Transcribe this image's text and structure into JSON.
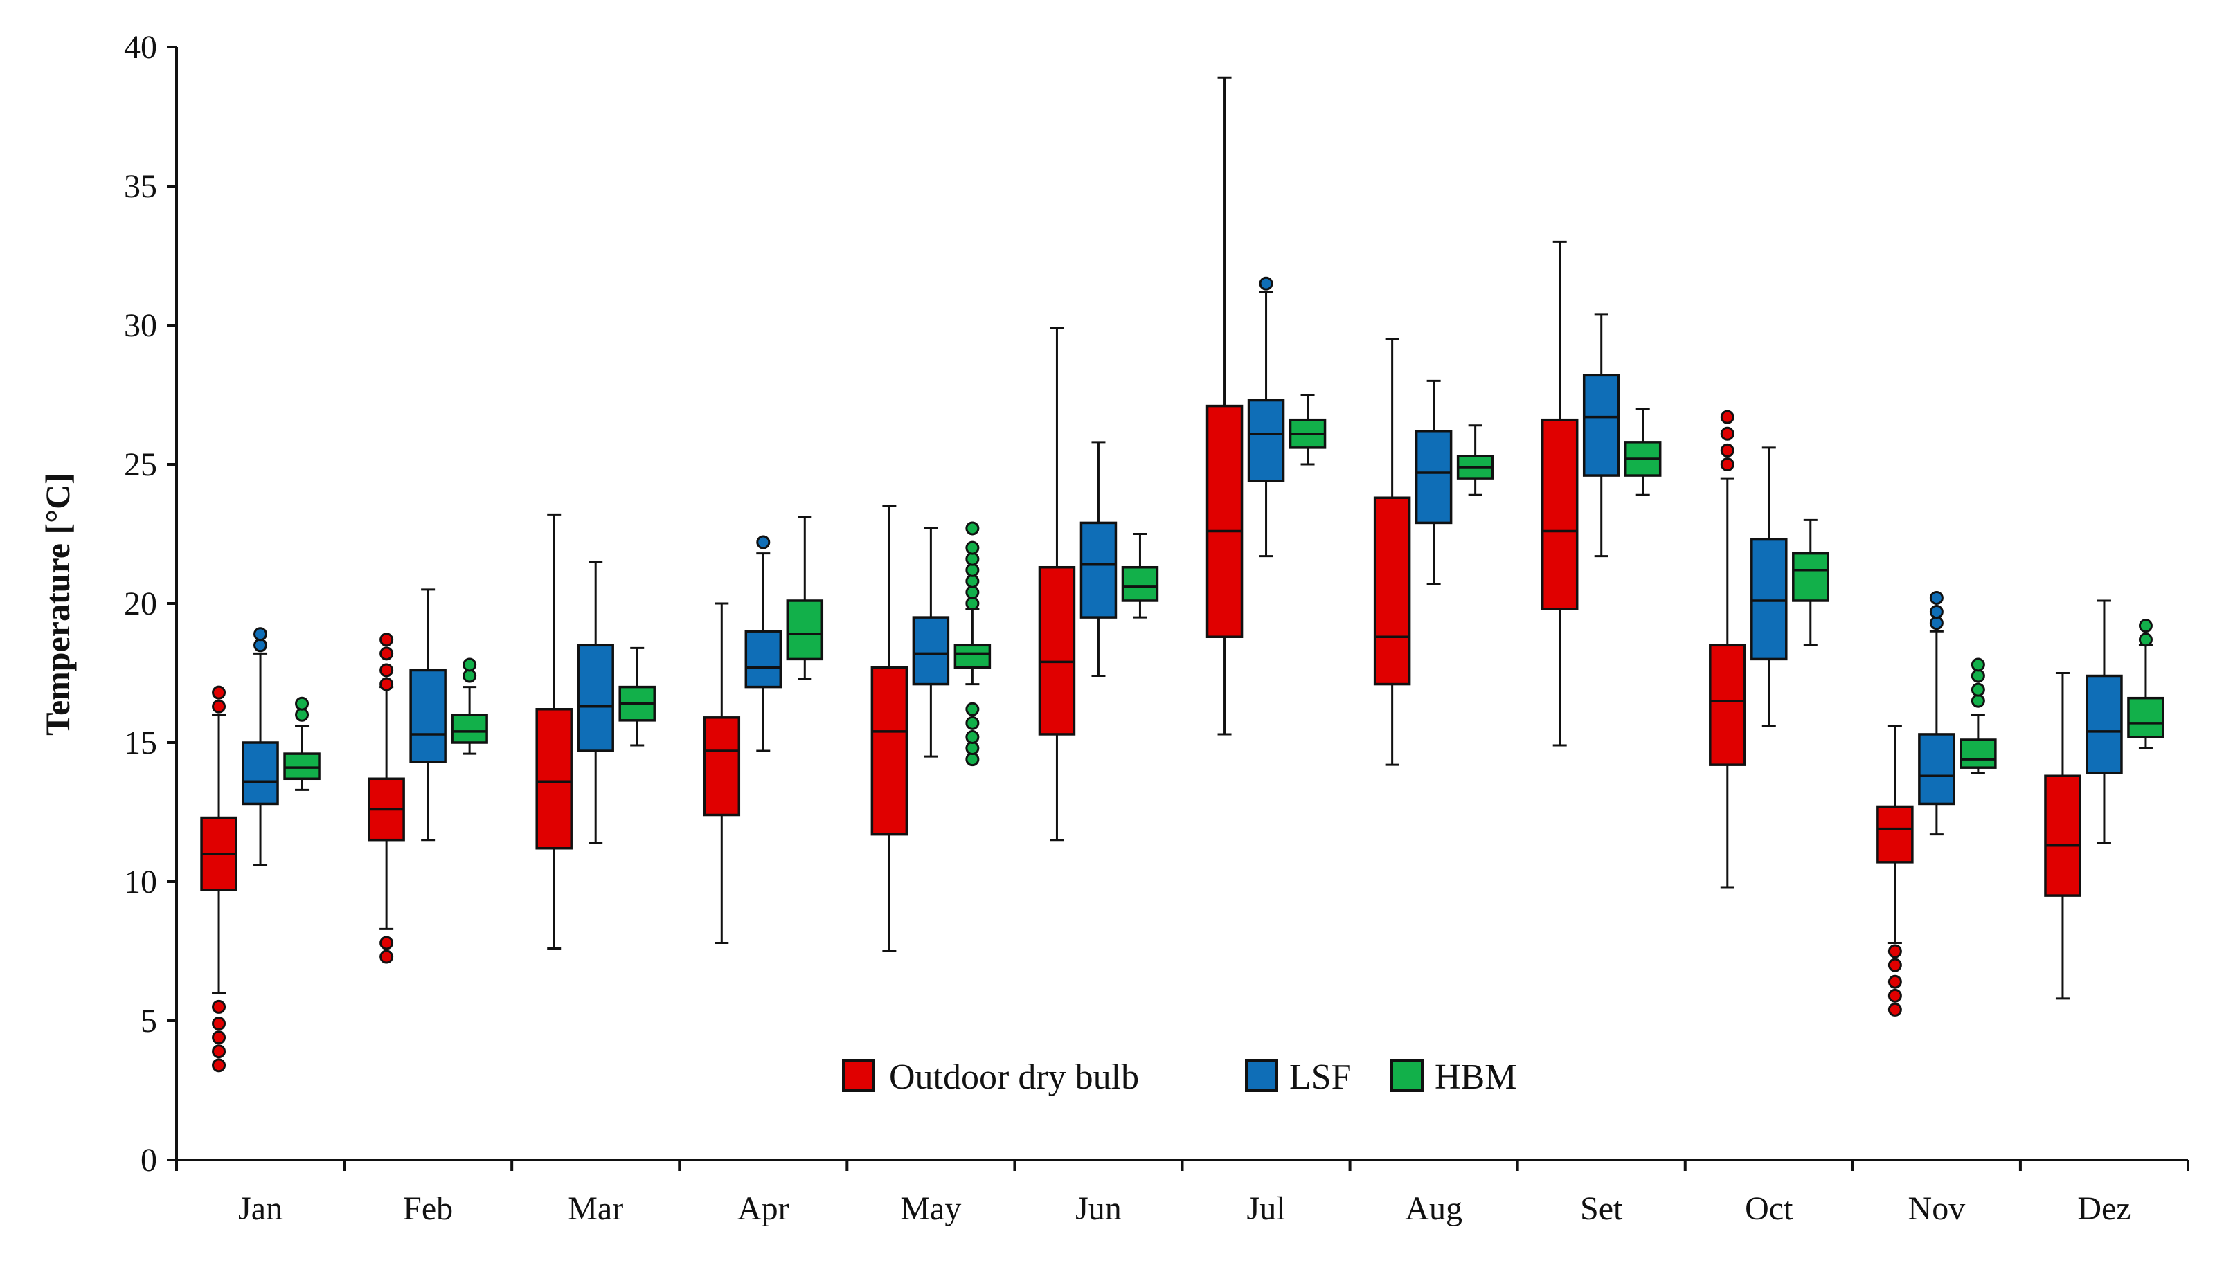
{
  "chart_data": {
    "type": "boxplot",
    "title": "",
    "xlabel": "",
    "ylabel": "Temperature [°C]",
    "ylim": [
      0,
      40
    ],
    "yticks": [
      0,
      5,
      10,
      15,
      20,
      25,
      30,
      35,
      40
    ],
    "grid": false,
    "legend_position": "bottom-center",
    "categories": [
      "Jan",
      "Feb",
      "Mar",
      "Apr",
      "May",
      "Jun",
      "Jul",
      "Aug",
      "Set",
      "Oct",
      "Nov",
      "Dez"
    ],
    "series": [
      {
        "name": "Outdoor dry bulb",
        "color": "#e00000",
        "boxes": [
          {
            "min": 6.0,
            "q1": 9.7,
            "median": 11.0,
            "q3": 12.3,
            "max": 16.0,
            "outliers": [
              3.4,
              3.9,
              4.4,
              4.9,
              5.5,
              16.3,
              16.8
            ]
          },
          {
            "min": 8.3,
            "q1": 11.5,
            "median": 12.6,
            "q3": 13.7,
            "max": 17.0,
            "outliers": [
              7.3,
              7.8,
              17.1,
              17.6,
              18.2,
              18.7
            ]
          },
          {
            "min": 7.6,
            "q1": 11.2,
            "median": 13.6,
            "q3": 16.2,
            "max": 23.2,
            "outliers": []
          },
          {
            "min": 7.8,
            "q1": 12.4,
            "median": 14.7,
            "q3": 15.9,
            "max": 20.0,
            "outliers": []
          },
          {
            "min": 7.5,
            "q1": 11.7,
            "median": 15.4,
            "q3": 17.7,
            "max": 23.5,
            "outliers": []
          },
          {
            "min": 11.5,
            "q1": 15.3,
            "median": 17.9,
            "q3": 21.3,
            "max": 29.9,
            "outliers": []
          },
          {
            "min": 15.3,
            "q1": 18.8,
            "median": 22.6,
            "q3": 27.1,
            "max": 38.9,
            "outliers": []
          },
          {
            "min": 14.2,
            "q1": 17.1,
            "median": 18.8,
            "q3": 23.8,
            "max": 29.5,
            "outliers": []
          },
          {
            "min": 14.9,
            "q1": 19.8,
            "median": 22.6,
            "q3": 26.6,
            "max": 33.0,
            "outliers": []
          },
          {
            "min": 9.8,
            "q1": 14.2,
            "median": 16.5,
            "q3": 18.5,
            "max": 24.5,
            "outliers": [
              25.0,
              25.5,
              26.1,
              26.7
            ]
          },
          {
            "min": 7.8,
            "q1": 10.7,
            "median": 11.9,
            "q3": 12.7,
            "max": 15.6,
            "outliers": [
              5.4,
              5.9,
              6.4,
              7.0,
              7.5
            ]
          },
          {
            "min": 5.8,
            "q1": 9.5,
            "median": 11.3,
            "q3": 13.8,
            "max": 17.5,
            "outliers": []
          }
        ]
      },
      {
        "name": "LSF",
        "color": "#0f6eb7",
        "boxes": [
          {
            "min": 10.6,
            "q1": 12.8,
            "median": 13.6,
            "q3": 15.0,
            "max": 18.2,
            "outliers": [
              18.5,
              18.9
            ]
          },
          {
            "min": 11.5,
            "q1": 14.3,
            "median": 15.3,
            "q3": 17.6,
            "max": 20.5,
            "outliers": []
          },
          {
            "min": 11.4,
            "q1": 14.7,
            "median": 16.3,
            "q3": 18.5,
            "max": 21.5,
            "outliers": []
          },
          {
            "min": 14.7,
            "q1": 17.0,
            "median": 17.7,
            "q3": 19.0,
            "max": 21.8,
            "outliers": [
              22.2
            ]
          },
          {
            "min": 14.5,
            "q1": 17.1,
            "median": 18.2,
            "q3": 19.5,
            "max": 22.7,
            "outliers": []
          },
          {
            "min": 17.4,
            "q1": 19.5,
            "median": 21.4,
            "q3": 22.9,
            "max": 25.8,
            "outliers": []
          },
          {
            "min": 21.7,
            "q1": 24.4,
            "median": 26.1,
            "q3": 27.3,
            "max": 31.2,
            "outliers": [
              31.5
            ]
          },
          {
            "min": 20.7,
            "q1": 22.9,
            "median": 24.7,
            "q3": 26.2,
            "max": 28.0,
            "outliers": []
          },
          {
            "min": 21.7,
            "q1": 24.6,
            "median": 26.7,
            "q3": 28.2,
            "max": 30.4,
            "outliers": []
          },
          {
            "min": 15.6,
            "q1": 18.0,
            "median": 20.1,
            "q3": 22.3,
            "max": 25.6,
            "outliers": []
          },
          {
            "min": 11.7,
            "q1": 12.8,
            "median": 13.8,
            "q3": 15.3,
            "max": 19.0,
            "outliers": [
              19.3,
              19.7,
              20.2
            ]
          },
          {
            "min": 11.4,
            "q1": 13.9,
            "median": 15.4,
            "q3": 17.4,
            "max": 20.1,
            "outliers": []
          }
        ]
      },
      {
        "name": "HBM",
        "color": "#12b04a",
        "boxes": [
          {
            "min": 13.3,
            "q1": 13.7,
            "median": 14.1,
            "q3": 14.6,
            "max": 15.6,
            "outliers": [
              16.0,
              16.4
            ]
          },
          {
            "min": 14.6,
            "q1": 15.0,
            "median": 15.4,
            "q3": 16.0,
            "max": 17.0,
            "outliers": [
              17.4,
              17.8
            ]
          },
          {
            "min": 14.9,
            "q1": 15.8,
            "median": 16.4,
            "q3": 17.0,
            "max": 18.4,
            "outliers": []
          },
          {
            "min": 17.3,
            "q1": 18.0,
            "median": 18.9,
            "q3": 20.1,
            "max": 23.1,
            "outliers": []
          },
          {
            "min": 17.1,
            "q1": 17.7,
            "median": 18.2,
            "q3": 18.5,
            "max": 19.8,
            "outliers": [
              14.4,
              14.8,
              15.2,
              15.7,
              16.2,
              20.0,
              20.4,
              20.8,
              21.2,
              21.6,
              22.0,
              22.7
            ]
          },
          {
            "min": 19.5,
            "q1": 20.1,
            "median": 20.6,
            "q3": 21.3,
            "max": 22.5,
            "outliers": []
          },
          {
            "min": 25.0,
            "q1": 25.6,
            "median": 26.1,
            "q3": 26.6,
            "max": 27.5,
            "outliers": []
          },
          {
            "min": 23.9,
            "q1": 24.5,
            "median": 24.9,
            "q3": 25.3,
            "max": 26.4,
            "outliers": []
          },
          {
            "min": 23.9,
            "q1": 24.6,
            "median": 25.2,
            "q3": 25.8,
            "max": 27.0,
            "outliers": []
          },
          {
            "min": 18.5,
            "q1": 20.1,
            "median": 21.2,
            "q3": 21.8,
            "max": 23.0,
            "outliers": []
          },
          {
            "min": 13.9,
            "q1": 14.1,
            "median": 14.4,
            "q3": 15.1,
            "max": 16.0,
            "outliers": [
              16.5,
              16.9,
              17.4,
              17.8
            ]
          },
          {
            "min": 14.8,
            "q1": 15.2,
            "median": 15.7,
            "q3": 16.6,
            "max": 18.5,
            "outliers": [
              18.7,
              19.2
            ]
          }
        ]
      }
    ]
  }
}
